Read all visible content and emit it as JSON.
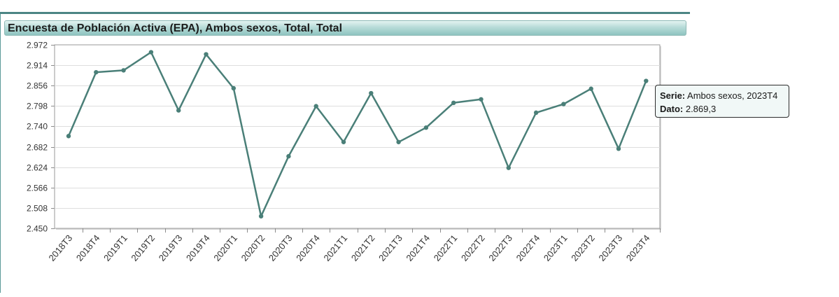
{
  "title": "Encuesta de Población Activa (EPA), Ambos sexos, Total, Total",
  "tooltip": {
    "serie_label": "Serie:",
    "serie_value": "Ambos sexos, 2023T4",
    "dato_label": "Dato:",
    "dato_value": "2.869,3"
  },
  "colors": {
    "line": "#4a7f78",
    "accent": "#4c8584"
  },
  "chart_data": {
    "type": "line",
    "title": "Encuesta de Población Activa (EPA), Ambos sexos, Total, Total",
    "categories": [
      "2018T3",
      "2018T4",
      "2019T1",
      "2019T2",
      "2019T3",
      "2019T4",
      "2020T1",
      "2020T2",
      "2020T3",
      "2020T4",
      "2021T1",
      "2021T2",
      "2021T3",
      "2021T4",
      "2022T1",
      "2022T2",
      "2022T3",
      "2022T4",
      "2023T1",
      "2023T2",
      "2023T3",
      "2023T4"
    ],
    "series": [
      {
        "name": "Ambos sexos",
        "values": [
          2712.5,
          2894.0,
          2899.5,
          2951.0,
          2785.5,
          2945.0,
          2848.5,
          2484.5,
          2655.0,
          2797.5,
          2695.5,
          2834.5,
          2695.5,
          2736.5,
          2807.0,
          2817.0,
          2622.0,
          2779.0,
          2803.5,
          2847.0,
          2676.5,
          2869.3
        ]
      }
    ],
    "ylim": [
      2450,
      2972
    ],
    "yticks": [
      "2.972",
      "2.914",
      "2.856",
      "2.798",
      "2.740",
      "2.682",
      "2.624",
      "2.566",
      "2.508",
      "2.450"
    ],
    "grid": true,
    "legend": "none"
  }
}
